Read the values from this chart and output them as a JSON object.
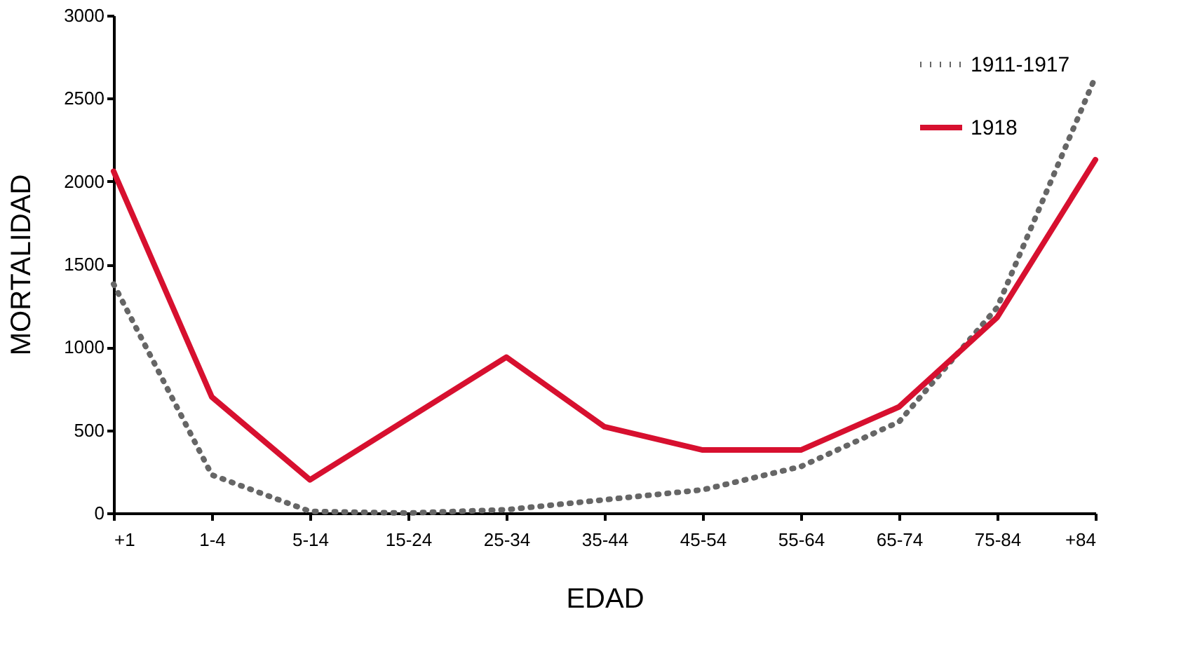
{
  "chart_data": {
    "type": "line",
    "xlabel": "EDAD",
    "ylabel": "MORTALIDAD",
    "categories": [
      "+1",
      "1-4",
      "5-14",
      "15-24",
      "25-34",
      "35-44",
      "45-54",
      "55-64",
      "65-74",
      "75-84",
      "+84"
    ],
    "series": [
      {
        "name": "1911-1917",
        "color": "#666666",
        "line_style": "dotted",
        "values": [
          1380,
          230,
          10,
          0,
          20,
          80,
          140,
          280,
          550,
          1240,
          2630
        ]
      },
      {
        "name": "1918",
        "color": "#d7102f",
        "line_style": "solid",
        "values": [
          2060,
          700,
          200,
          570,
          940,
          520,
          380,
          380,
          640,
          1180,
          2130
        ]
      }
    ],
    "ylim": [
      0,
      3000
    ],
    "yticks": [
      0,
      500,
      1000,
      1500,
      2000,
      2500,
      3000
    ],
    "grid": false,
    "legend": "top right"
  }
}
